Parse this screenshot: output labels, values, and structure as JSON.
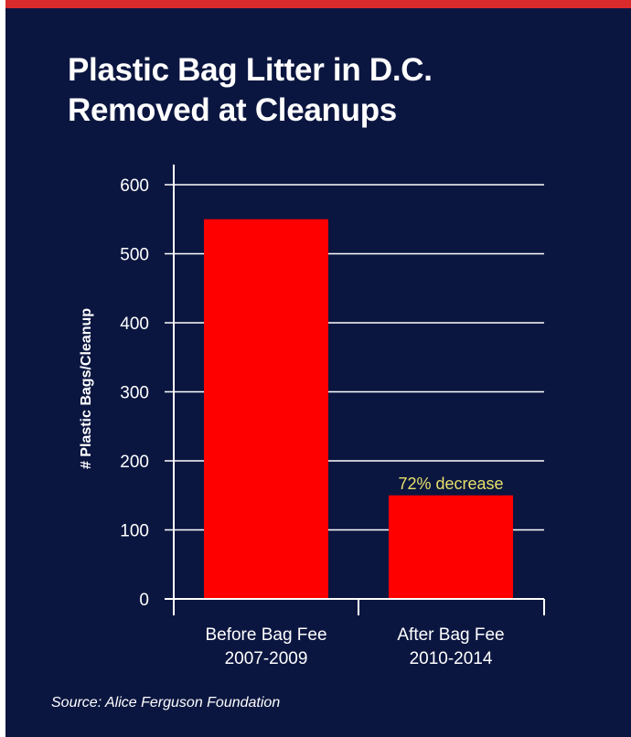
{
  "colors": {
    "background": "#0b1640",
    "top_stripe": "#d92b2b",
    "bar": "#ff0000",
    "text": "#ffffff",
    "annotation": "#e6e06a"
  },
  "source_text": "Source: Alice Ferguson Foundation",
  "chart_data": {
    "type": "bar",
    "title_lines": [
      "Plastic Bag Litter in D.C.",
      "Removed at Cleanups"
    ],
    "xlabel": "",
    "ylabel": "# Plastic Bags/Cleanup",
    "categories": [
      [
        "Before Bag Fee",
        "2007-2009"
      ],
      [
        "After Bag Fee",
        "2010-2014"
      ]
    ],
    "values": [
      550,
      150
    ],
    "ylim": [
      0,
      600
    ],
    "yticks": [
      0,
      100,
      200,
      300,
      400,
      500,
      600
    ],
    "grid": true,
    "annotations": [
      {
        "category_index": 1,
        "text": "72% decrease"
      }
    ]
  }
}
